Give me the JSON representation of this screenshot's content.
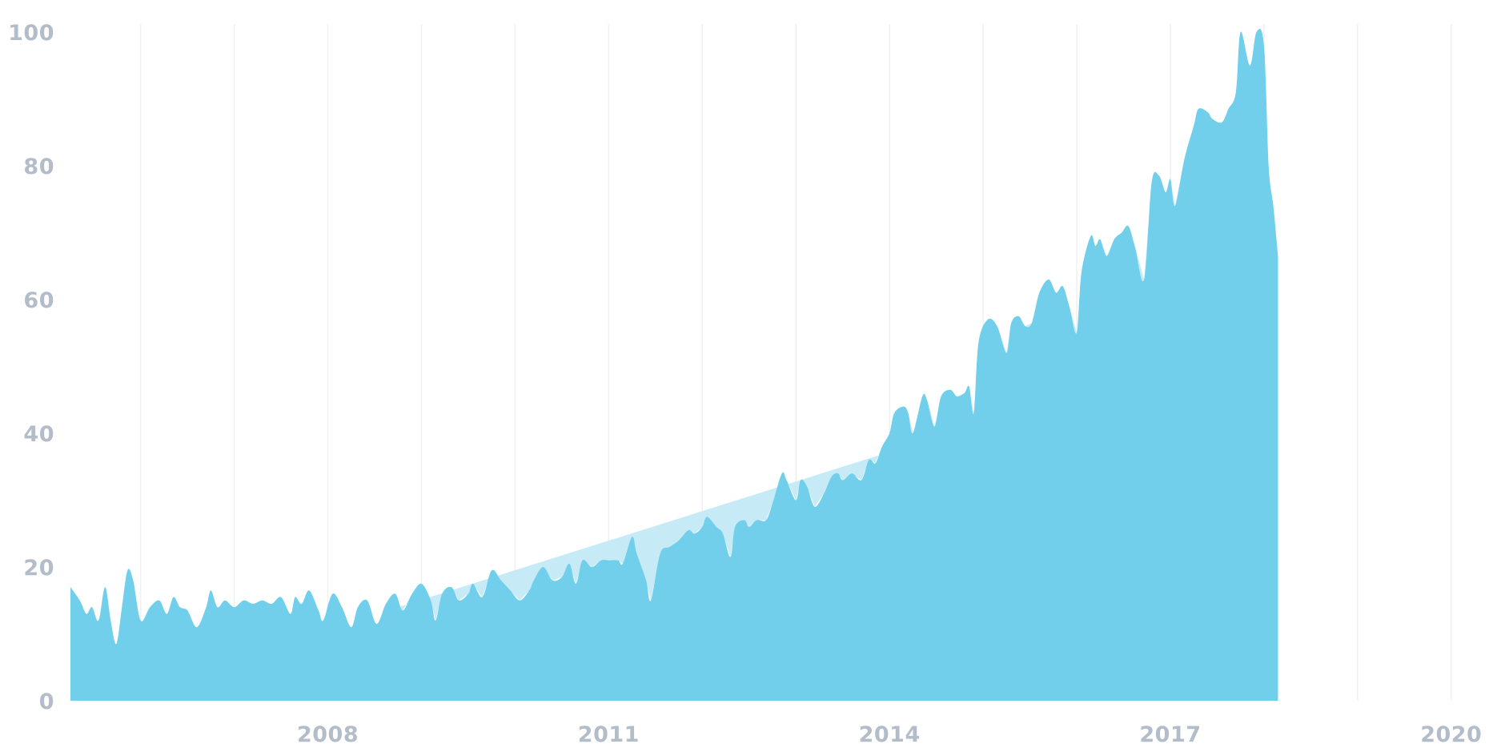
{
  "chart_data": {
    "type": "area",
    "title": "",
    "xlabel": "",
    "ylabel": "",
    "xlim": [
      2005.25,
      2020.25
    ],
    "ylim": [
      0,
      100
    ],
    "grid": "vertical lines, yearly",
    "legend": "none",
    "y_ticks": [
      0,
      20,
      40,
      60,
      80,
      100
    ],
    "y_tick_labels": [
      "0",
      "20",
      "40",
      "60",
      "80",
      "100"
    ],
    "x_ticks": [
      2008,
      2011,
      2014,
      2017,
      2020
    ],
    "x_tick_labels": [
      "2008",
      "2011",
      "2014",
      "2017",
      "2020"
    ],
    "grid_years": [
      2006,
      2007,
      2008,
      2009,
      2010,
      2011,
      2012,
      2013,
      2014,
      2015,
      2016,
      2017,
      2018,
      2019,
      2020
    ],
    "colors": {
      "series": "#72cfeb",
      "trend": "#c6eaf6",
      "tick_text": "#b2bdc9",
      "grid": "#eef0f2"
    },
    "series": [
      {
        "values": [
          [
            2005.25,
            17
          ],
          [
            2005.35,
            15
          ],
          [
            2005.42,
            13
          ],
          [
            2005.48,
            14
          ],
          [
            2005.55,
            12
          ],
          [
            2005.62,
            17
          ],
          [
            2005.68,
            12
          ],
          [
            2005.74,
            8.5
          ],
          [
            2005.8,
            14
          ],
          [
            2005.86,
            19.5
          ],
          [
            2005.92,
            18
          ],
          [
            2006.0,
            12
          ],
          [
            2006.1,
            14
          ],
          [
            2006.2,
            15
          ],
          [
            2006.28,
            13
          ],
          [
            2006.35,
            15.5
          ],
          [
            2006.42,
            14
          ],
          [
            2006.5,
            13.5
          ],
          [
            2006.6,
            11
          ],
          [
            2006.7,
            14
          ],
          [
            2006.75,
            16.5
          ],
          [
            2006.82,
            14
          ],
          [
            2006.9,
            15
          ],
          [
            2007.0,
            14
          ],
          [
            2007.1,
            15
          ],
          [
            2007.2,
            14.5
          ],
          [
            2007.3,
            15
          ],
          [
            2007.4,
            14.5
          ],
          [
            2007.5,
            15.5
          ],
          [
            2007.6,
            13
          ],
          [
            2007.65,
            15.5
          ],
          [
            2007.72,
            14.5
          ],
          [
            2007.8,
            16.5
          ],
          [
            2007.9,
            13.5
          ],
          [
            2007.95,
            12
          ],
          [
            2008.05,
            16
          ],
          [
            2008.15,
            14
          ],
          [
            2008.25,
            11
          ],
          [
            2008.32,
            14
          ],
          [
            2008.42,
            15
          ],
          [
            2008.52,
            11.5
          ],
          [
            2008.62,
            14.5
          ],
          [
            2008.72,
            16
          ],
          [
            2008.8,
            13.5
          ],
          [
            2008.9,
            16
          ],
          [
            2009.0,
            17.5
          ],
          [
            2009.1,
            15
          ],
          [
            2009.15,
            12
          ],
          [
            2009.22,
            16
          ],
          [
            2009.32,
            17
          ],
          [
            2009.4,
            15
          ],
          [
            2009.5,
            16
          ],
          [
            2009.55,
            17.5
          ],
          [
            2009.65,
            15.5
          ],
          [
            2009.75,
            19.5
          ],
          [
            2009.85,
            18
          ],
          [
            2009.95,
            16.5
          ],
          [
            2010.05,
            15
          ],
          [
            2010.15,
            16.5
          ],
          [
            2010.2,
            18
          ],
          [
            2010.3,
            20
          ],
          [
            2010.4,
            18
          ],
          [
            2010.5,
            18.5
          ],
          [
            2010.58,
            20.5
          ],
          [
            2010.65,
            17.5
          ],
          [
            2010.72,
            21
          ],
          [
            2010.82,
            20
          ],
          [
            2010.92,
            21
          ],
          [
            2011.0,
            21
          ],
          [
            2011.1,
            21
          ],
          [
            2011.15,
            20.5
          ],
          [
            2011.25,
            24.5
          ],
          [
            2011.3,
            22
          ],
          [
            2011.4,
            18
          ],
          [
            2011.45,
            15
          ],
          [
            2011.55,
            22
          ],
          [
            2011.65,
            23
          ],
          [
            2011.75,
            24
          ],
          [
            2011.85,
            25.5
          ],
          [
            2011.92,
            25
          ],
          [
            2012.0,
            26
          ],
          [
            2012.05,
            27.5
          ],
          [
            2012.15,
            26
          ],
          [
            2012.22,
            25
          ],
          [
            2012.3,
            21.5
          ],
          [
            2012.35,
            26
          ],
          [
            2012.45,
            27
          ],
          [
            2012.5,
            26
          ],
          [
            2012.58,
            27
          ],
          [
            2012.68,
            27
          ],
          [
            2012.75,
            29.5
          ],
          [
            2012.85,
            34
          ],
          [
            2012.9,
            33
          ],
          [
            2013.0,
            30
          ],
          [
            2013.05,
            33
          ],
          [
            2013.12,
            32
          ],
          [
            2013.2,
            29
          ],
          [
            2013.3,
            31
          ],
          [
            2013.38,
            33.5
          ],
          [
            2013.45,
            34
          ],
          [
            2013.5,
            33
          ],
          [
            2013.6,
            34
          ],
          [
            2013.7,
            33
          ],
          [
            2013.78,
            36
          ],
          [
            2013.85,
            35.5
          ],
          [
            2013.92,
            38
          ],
          [
            2014.0,
            40
          ],
          [
            2014.05,
            43
          ],
          [
            2014.15,
            44
          ],
          [
            2014.2,
            43
          ],
          [
            2014.25,
            40
          ],
          [
            2014.35,
            45.5
          ],
          [
            2014.4,
            45
          ],
          [
            2014.48,
            41
          ],
          [
            2014.55,
            45.5
          ],
          [
            2014.65,
            46.5
          ],
          [
            2014.72,
            45.5
          ],
          [
            2014.8,
            46
          ],
          [
            2014.85,
            47
          ],
          [
            2014.9,
            43
          ],
          [
            2014.95,
            53.5
          ],
          [
            2015.05,
            57
          ],
          [
            2015.15,
            56
          ],
          [
            2015.25,
            52
          ],
          [
            2015.3,
            56.5
          ],
          [
            2015.38,
            57.5
          ],
          [
            2015.45,
            56
          ],
          [
            2015.52,
            56.5
          ],
          [
            2015.6,
            61
          ],
          [
            2015.7,
            63
          ],
          [
            2015.78,
            61
          ],
          [
            2015.85,
            62
          ],
          [
            2015.92,
            59
          ],
          [
            2016.0,
            55
          ],
          [
            2016.05,
            64
          ],
          [
            2016.15,
            69.5
          ],
          [
            2016.2,
            68
          ],
          [
            2016.25,
            69
          ],
          [
            2016.32,
            66.5
          ],
          [
            2016.4,
            69
          ],
          [
            2016.48,
            70
          ],
          [
            2016.55,
            71
          ],
          [
            2016.62,
            68
          ],
          [
            2016.72,
            63
          ],
          [
            2016.8,
            77.5
          ],
          [
            2016.88,
            78.5
          ],
          [
            2016.95,
            76
          ],
          [
            2017.0,
            78
          ],
          [
            2017.05,
            74
          ],
          [
            2017.15,
            81
          ],
          [
            2017.25,
            86
          ],
          [
            2017.3,
            88.5
          ],
          [
            2017.4,
            88
          ],
          [
            2017.45,
            87
          ],
          [
            2017.55,
            86.5
          ],
          [
            2017.62,
            88.5
          ],
          [
            2017.7,
            91
          ],
          [
            2017.75,
            100
          ],
          [
            2017.85,
            95
          ],
          [
            2017.92,
            100
          ],
          [
            2018.0,
            98
          ],
          [
            2018.05,
            80
          ],
          [
            2018.1,
            74
          ],
          [
            2018.15,
            66.5
          ]
        ]
      }
    ]
  }
}
